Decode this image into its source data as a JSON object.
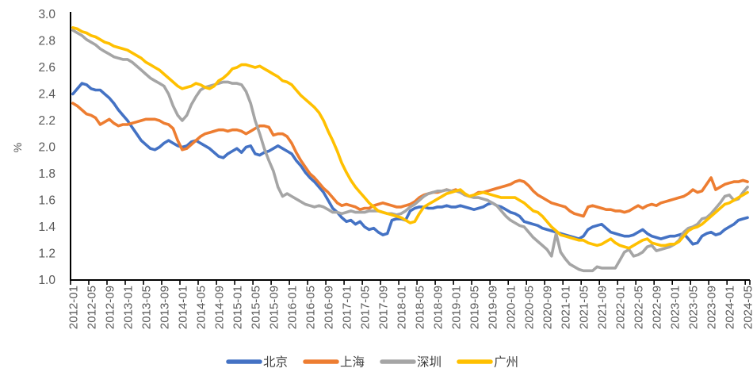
{
  "chart_data": {
    "type": "line",
    "title": "",
    "ylabel": "%",
    "ylim": [
      1.0,
      3.0
    ],
    "y_ticks": [
      "3.0",
      "2.8",
      "2.6",
      "2.4",
      "2.2",
      "2.0",
      "1.8",
      "1.6",
      "1.4",
      "1.2",
      "1.0"
    ],
    "x_tick_labels": [
      "2012-01",
      "2012-05",
      "2012-09",
      "2013-01",
      "2013-05",
      "2013-09",
      "2014-01",
      "2014-05",
      "2014-09",
      "2015-01",
      "2015-05",
      "2015-09",
      "2016-01",
      "2016-05",
      "2016-09",
      "2017-01",
      "2017-05",
      "2017-09",
      "2018-01",
      "2018-05",
      "2018-09",
      "2019-01",
      "2019-05",
      "2019-09",
      "2020-01",
      "2020-05",
      "2020-09",
      "2021-01",
      "2021-05",
      "2021-09",
      "2022-01",
      "2022-05",
      "2022-09",
      "2023-01",
      "2023-05",
      "2023-09",
      "2024-01",
      "2024-05"
    ],
    "months_per_tick": 4,
    "grid": false,
    "legend_position": "bottom",
    "axis_color": "#000000",
    "label_color": "#595959",
    "legend_text_color": "#404040",
    "series": [
      {
        "name": "北京",
        "key": "beijing",
        "color": "#4472C4",
        "values": [
          2.4,
          2.44,
          2.48,
          2.47,
          2.44,
          2.43,
          2.43,
          2.4,
          2.37,
          2.33,
          2.28,
          2.24,
          2.2,
          2.15,
          2.1,
          2.05,
          2.02,
          1.99,
          1.98,
          2.0,
          2.03,
          2.05,
          2.03,
          2.01,
          2.0,
          2.01,
          2.04,
          2.05,
          2.03,
          2.01,
          1.99,
          1.96,
          1.93,
          1.92,
          1.95,
          1.97,
          1.99,
          1.96,
          2.0,
          2.01,
          1.95,
          1.94,
          1.96,
          1.97,
          1.99,
          2.01,
          1.99,
          1.97,
          1.95,
          1.9,
          1.86,
          1.81,
          1.77,
          1.74,
          1.7,
          1.66,
          1.6,
          1.54,
          1.51,
          1.47,
          1.44,
          1.45,
          1.42,
          1.44,
          1.4,
          1.38,
          1.39,
          1.36,
          1.34,
          1.35,
          1.45,
          1.46,
          1.46,
          1.45,
          1.52,
          1.54,
          1.55,
          1.55,
          1.54,
          1.54,
          1.55,
          1.55,
          1.56,
          1.55,
          1.55,
          1.56,
          1.55,
          1.54,
          1.53,
          1.54,
          1.55,
          1.57,
          1.58,
          1.56,
          1.55,
          1.53,
          1.51,
          1.5,
          1.48,
          1.44,
          1.43,
          1.42,
          1.41,
          1.39,
          1.38,
          1.37,
          1.36,
          1.35,
          1.34,
          1.33,
          1.32,
          1.31,
          1.33,
          1.38,
          1.4,
          1.41,
          1.42,
          1.39,
          1.36,
          1.35,
          1.34,
          1.33,
          1.33,
          1.34,
          1.36,
          1.38,
          1.35,
          1.33,
          1.32,
          1.31,
          1.32,
          1.33,
          1.33,
          1.34,
          1.35,
          1.31,
          1.27,
          1.28,
          1.33,
          1.35,
          1.36,
          1.34,
          1.35,
          1.38,
          1.4,
          1.42,
          1.45,
          1.46,
          1.47
        ]
      },
      {
        "name": "上海",
        "key": "shanghai",
        "color": "#ED7D31",
        "values": [
          2.33,
          2.31,
          2.28,
          2.25,
          2.24,
          2.22,
          2.17,
          2.19,
          2.21,
          2.18,
          2.16,
          2.17,
          2.17,
          2.18,
          2.19,
          2.2,
          2.21,
          2.21,
          2.21,
          2.2,
          2.18,
          2.17,
          2.14,
          2.05,
          1.98,
          1.99,
          2.02,
          2.05,
          2.08,
          2.1,
          2.11,
          2.12,
          2.13,
          2.13,
          2.12,
          2.13,
          2.13,
          2.12,
          2.1,
          2.12,
          2.14,
          2.16,
          2.16,
          2.15,
          2.09,
          2.1,
          2.1,
          2.08,
          2.03,
          1.96,
          1.9,
          1.85,
          1.8,
          1.77,
          1.73,
          1.69,
          1.66,
          1.62,
          1.58,
          1.56,
          1.57,
          1.56,
          1.55,
          1.53,
          1.54,
          1.54,
          1.56,
          1.57,
          1.58,
          1.57,
          1.56,
          1.55,
          1.55,
          1.56,
          1.57,
          1.59,
          1.62,
          1.64,
          1.65,
          1.66,
          1.66,
          1.67,
          1.68,
          1.67,
          1.68,
          1.66,
          1.64,
          1.63,
          1.64,
          1.66,
          1.66,
          1.67,
          1.68,
          1.69,
          1.7,
          1.71,
          1.72,
          1.74,
          1.75,
          1.74,
          1.71,
          1.67,
          1.64,
          1.62,
          1.6,
          1.58,
          1.57,
          1.56,
          1.55,
          1.52,
          1.5,
          1.49,
          1.48,
          1.55,
          1.56,
          1.55,
          1.54,
          1.53,
          1.53,
          1.52,
          1.52,
          1.51,
          1.52,
          1.54,
          1.56,
          1.54,
          1.56,
          1.57,
          1.56,
          1.58,
          1.59,
          1.6,
          1.61,
          1.62,
          1.63,
          1.65,
          1.68,
          1.66,
          1.67,
          1.72,
          1.77,
          1.68,
          1.7,
          1.72,
          1.73,
          1.74,
          1.74,
          1.75,
          1.74
        ]
      },
      {
        "name": "深圳",
        "key": "shenzhen",
        "color": "#A5A5A5",
        "values": [
          2.88,
          2.86,
          2.84,
          2.81,
          2.79,
          2.77,
          2.74,
          2.72,
          2.7,
          2.68,
          2.67,
          2.66,
          2.66,
          2.64,
          2.61,
          2.58,
          2.55,
          2.52,
          2.5,
          2.48,
          2.46,
          2.4,
          2.31,
          2.24,
          2.2,
          2.24,
          2.32,
          2.38,
          2.43,
          2.45,
          2.46,
          2.47,
          2.48,
          2.49,
          2.49,
          2.48,
          2.48,
          2.47,
          2.42,
          2.33,
          2.2,
          2.1,
          1.99,
          1.9,
          1.82,
          1.7,
          1.63,
          1.65,
          1.63,
          1.61,
          1.59,
          1.57,
          1.56,
          1.55,
          1.56,
          1.55,
          1.53,
          1.51,
          1.51,
          1.5,
          1.51,
          1.52,
          1.51,
          1.51,
          1.51,
          1.52,
          1.52,
          1.52,
          1.51,
          1.5,
          1.5,
          1.49,
          1.5,
          1.52,
          1.55,
          1.57,
          1.6,
          1.63,
          1.65,
          1.66,
          1.67,
          1.67,
          1.68,
          1.67,
          1.67,
          1.66,
          1.64,
          1.63,
          1.62,
          1.62,
          1.61,
          1.6,
          1.58,
          1.56,
          1.52,
          1.48,
          1.45,
          1.43,
          1.41,
          1.4,
          1.36,
          1.32,
          1.29,
          1.26,
          1.23,
          1.18,
          1.35,
          1.21,
          1.16,
          1.12,
          1.1,
          1.08,
          1.07,
          1.07,
          1.07,
          1.1,
          1.09,
          1.09,
          1.09,
          1.09,
          1.15,
          1.21,
          1.23,
          1.18,
          1.19,
          1.21,
          1.25,
          1.26,
          1.22,
          1.23,
          1.24,
          1.25,
          1.27,
          1.3,
          1.36,
          1.39,
          1.4,
          1.42,
          1.46,
          1.47,
          1.5,
          1.54,
          1.58,
          1.63,
          1.64,
          1.6,
          1.61,
          1.66,
          1.7
        ]
      },
      {
        "name": "广州",
        "key": "guangzhou",
        "color": "#FFC000",
        "values": [
          2.9,
          2.89,
          2.87,
          2.86,
          2.84,
          2.83,
          2.81,
          2.79,
          2.78,
          2.76,
          2.75,
          2.74,
          2.73,
          2.71,
          2.69,
          2.67,
          2.64,
          2.62,
          2.6,
          2.58,
          2.55,
          2.52,
          2.49,
          2.46,
          2.44,
          2.45,
          2.46,
          2.48,
          2.47,
          2.45,
          2.44,
          2.46,
          2.5,
          2.52,
          2.55,
          2.59,
          2.6,
          2.62,
          2.62,
          2.61,
          2.6,
          2.61,
          2.59,
          2.57,
          2.55,
          2.53,
          2.5,
          2.49,
          2.47,
          2.43,
          2.39,
          2.36,
          2.33,
          2.3,
          2.26,
          2.2,
          2.12,
          2.05,
          1.97,
          1.88,
          1.81,
          1.75,
          1.7,
          1.66,
          1.62,
          1.58,
          1.55,
          1.52,
          1.51,
          1.5,
          1.49,
          1.48,
          1.47,
          1.45,
          1.43,
          1.44,
          1.5,
          1.55,
          1.57,
          1.59,
          1.61,
          1.63,
          1.65,
          1.66,
          1.67,
          1.68,
          1.65,
          1.63,
          1.64,
          1.65,
          1.66,
          1.65,
          1.64,
          1.63,
          1.62,
          1.62,
          1.62,
          1.62,
          1.6,
          1.58,
          1.55,
          1.52,
          1.51,
          1.48,
          1.44,
          1.4,
          1.37,
          1.34,
          1.33,
          1.32,
          1.31,
          1.3,
          1.3,
          1.28,
          1.27,
          1.26,
          1.27,
          1.29,
          1.31,
          1.28,
          1.26,
          1.25,
          1.24,
          1.26,
          1.28,
          1.3,
          1.31,
          1.28,
          1.27,
          1.26,
          1.26,
          1.27,
          1.27,
          1.29,
          1.33,
          1.37,
          1.39,
          1.4,
          1.42,
          1.45,
          1.48,
          1.51,
          1.54,
          1.57,
          1.58,
          1.6,
          1.62,
          1.64,
          1.66
        ]
      }
    ]
  }
}
